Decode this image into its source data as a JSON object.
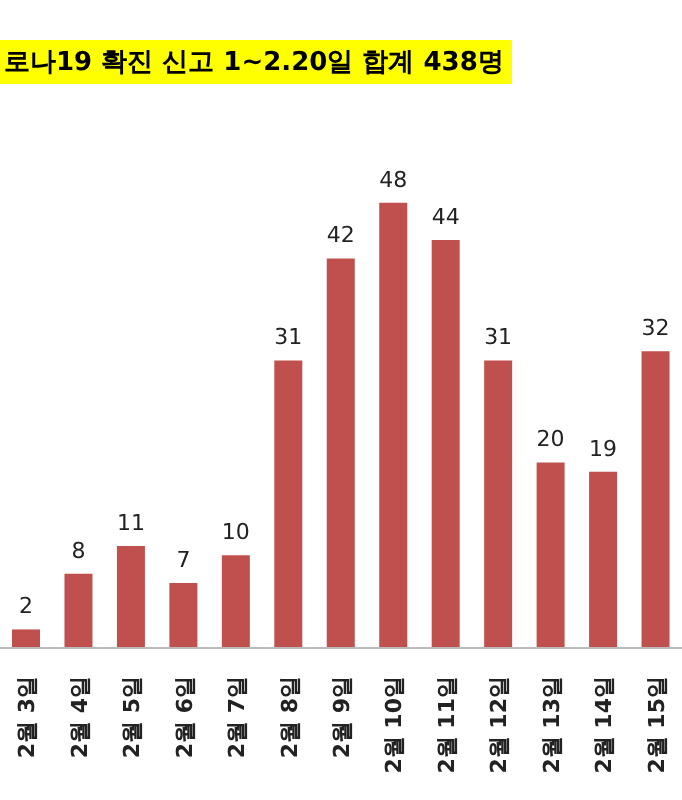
{
  "chart_data": {
    "type": "bar",
    "title": "로나19 확진 신고 1~2.20일 합계 438명",
    "categories": [
      "2월 3일",
      "2월 4일",
      "2월 5일",
      "2월 6일",
      "2월 7일",
      "2월 8일",
      "2월 9일",
      "2월 10일",
      "2월 11일",
      "2월 12일",
      "2월 13일",
      "2월 14일",
      "2월 15일"
    ],
    "values": [
      2,
      8,
      11,
      7,
      10,
      31,
      42,
      48,
      44,
      31,
      20,
      19,
      32
    ],
    "color": "#c0504d",
    "data_labels": true
  }
}
